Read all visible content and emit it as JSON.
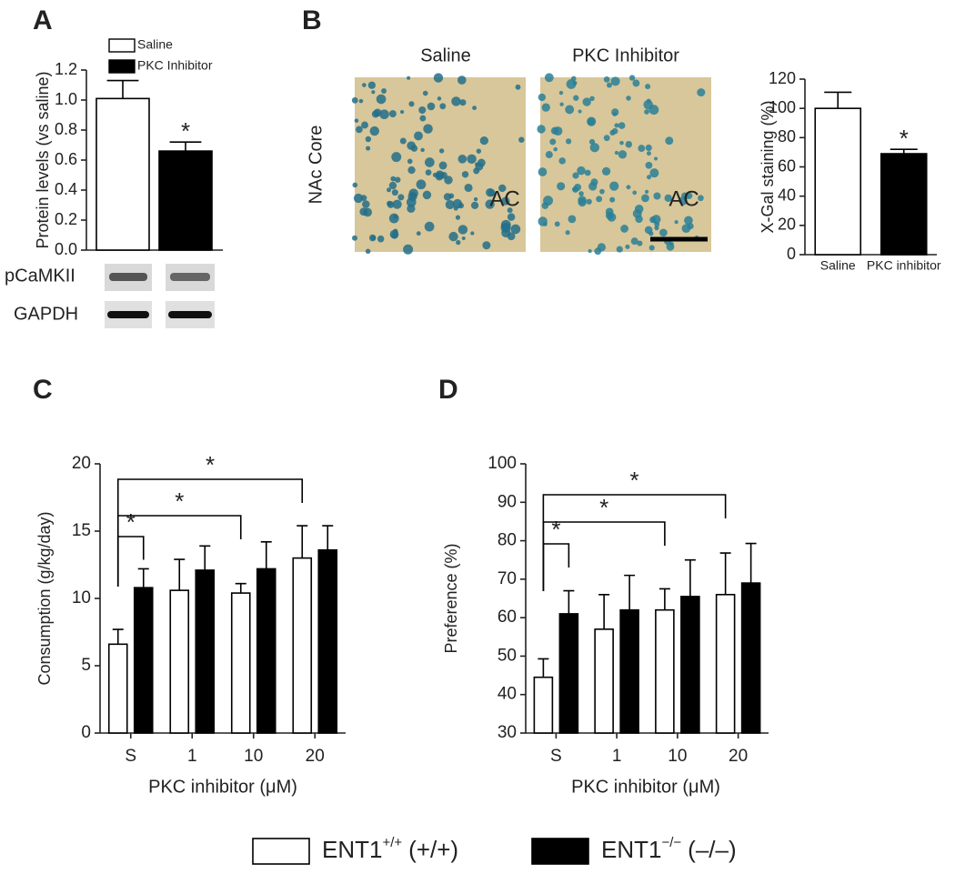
{
  "letters": [
    "A",
    "B",
    "C",
    "D"
  ],
  "blots": {
    "labels": [
      "pCaMKII",
      "GAPDH"
    ]
  },
  "images": {
    "columns": [
      "Saline",
      "PKC Inhibitor"
    ],
    "row_label": "NAc Core",
    "region_labels": [
      "AC",
      "AC"
    ]
  },
  "legend": [
    {
      "name": "ENT1",
      "superscript": "+/+",
      "suffix": "(+/+)",
      "color": "#ffffff"
    },
    {
      "name": "ENT1",
      "superscript": "−/−",
      "suffix": "(–/–)",
      "color": "#000000"
    }
  ],
  "chart_data": [
    {
      "type": "bar",
      "ylabel": "Protein levels (vs saline)",
      "ylim": [
        0,
        1.2
      ],
      "yticks": [
        {
          "value": 0,
          "label": "0.0"
        },
        {
          "value": 0.2,
          "label": "0.2"
        },
        {
          "value": 0.4,
          "label": "0.4"
        },
        {
          "value": 0.6,
          "label": "0.6"
        },
        {
          "value": 0.8,
          "label": "0.8"
        },
        {
          "value": 1.0,
          "label": "1.0"
        },
        {
          "value": 1.2,
          "label": "1.2"
        }
      ],
      "series": [
        {
          "name": "Saline",
          "color": "#ffffff",
          "values": [
            1.01
          ],
          "errors": [
            0.12
          ]
        },
        {
          "name": "PKC Inhibitor",
          "color": "#000000",
          "values": [
            0.66
          ],
          "errors": [
            0.06
          ]
        }
      ],
      "annotations": [
        "*"
      ]
    },
    {
      "type": "bar",
      "ylabel": "X-Gal  staining (%)",
      "categories": [
        "Saline",
        "PKC inhibitor"
      ],
      "ylim": [
        0,
        120
      ],
      "yticks": [
        0,
        20,
        40,
        60,
        80,
        100,
        120
      ],
      "series": [
        {
          "colors": [
            "#ffffff",
            "#000000"
          ],
          "values": [
            100,
            69
          ],
          "errors": [
            11,
            3
          ]
        }
      ],
      "annotations": [
        "*"
      ]
    },
    {
      "type": "bar",
      "ylabel": "Consumption (g/kg/day)",
      "xlabel": "PKC inhibitor (μM)",
      "categories": [
        "S",
        "1",
        "10",
        "20"
      ],
      "ylim": [
        0,
        20
      ],
      "yticks": [
        0,
        5,
        10,
        15,
        20
      ],
      "series": [
        {
          "color": "#ffffff",
          "values": [
            6.6,
            10.6,
            10.4,
            13.0
          ],
          "errors": [
            1.1,
            2.3,
            0.7,
            2.4
          ]
        },
        {
          "color": "#000000",
          "values": [
            10.8,
            12.1,
            12.2,
            13.6
          ],
          "errors": [
            1.4,
            1.8,
            2.0,
            1.8
          ]
        }
      ],
      "annotations": [
        "*",
        "*",
        "*"
      ]
    },
    {
      "type": "bar",
      "ylabel": "Preference (%)",
      "xlabel": "PKC inhibitor (μM)",
      "categories": [
        "S",
        "1",
        "10",
        "20"
      ],
      "ylim": [
        30,
        100
      ],
      "yticks": [
        30,
        40,
        50,
        60,
        70,
        80,
        90,
        100
      ],
      "series": [
        {
          "color": "#ffffff",
          "values": [
            44.5,
            57,
            62,
            66
          ],
          "errors": [
            4.8,
            9,
            5.5,
            10.8
          ]
        },
        {
          "color": "#000000",
          "values": [
            61,
            62,
            65.5,
            69
          ],
          "errors": [
            6,
            9,
            9.5,
            10.3
          ]
        }
      ],
      "annotations": [
        "*",
        "*",
        "*"
      ]
    }
  ]
}
